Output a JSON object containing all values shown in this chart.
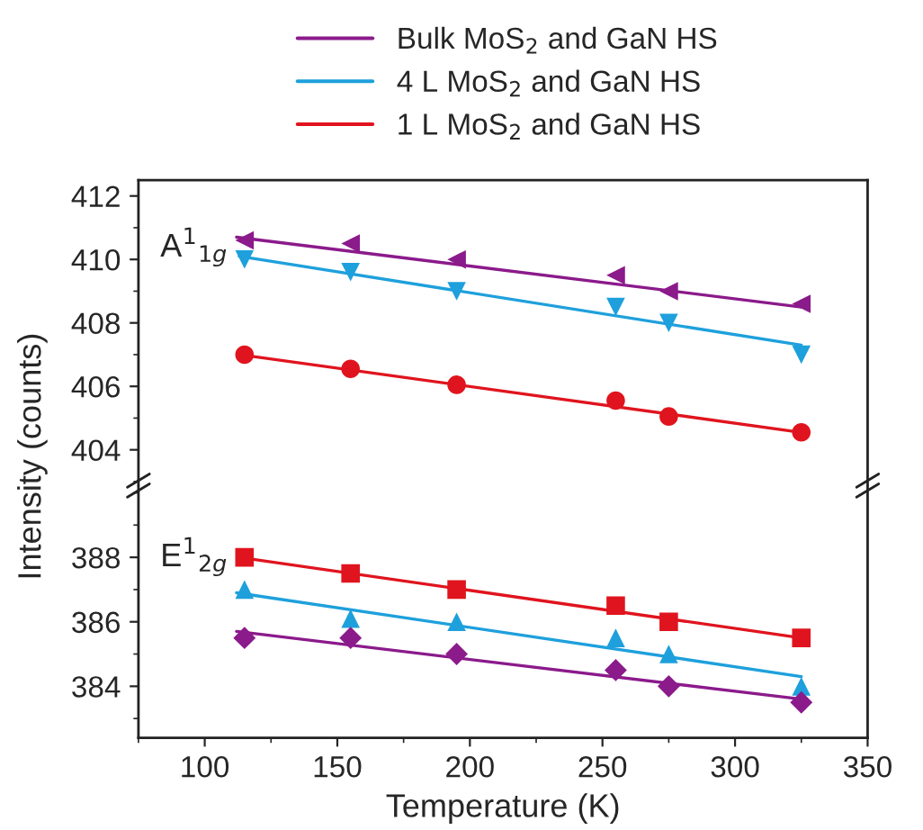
{
  "chart_data": [
    {
      "type": "scatter",
      "ylabel": "Intensity (counts)",
      "annotations": [
        "A$^{1}$$_{1g}$"
      ],
      "legend": "top",
      "tick_labels": "y",
      "xlim": [
        75,
        350
      ],
      "xticks": [
        100,
        150,
        200,
        250,
        300,
        350
      ],
      "ylim": [
        402.9,
        412.5
      ],
      "yticks": [
        404,
        406,
        408,
        410,
        412
      ],
      "series": [
        {
          "color": "#8b1a8b",
          "marker": "triangle-left",
          "x": [
            115,
            155,
            195,
            255,
            275,
            325
          ],
          "values": [
            410.6,
            410.5,
            410.0,
            409.5,
            409.0,
            408.6
          ]
        },
        {
          "color": "#1ea0dc",
          "marker": "triangle-down",
          "x": [
            115,
            155,
            195,
            255,
            275,
            325
          ],
          "values": [
            410.0,
            409.6,
            409.0,
            408.5,
            408.0,
            407.0
          ]
        },
        {
          "color": "#e0141e",
          "marker": "circle",
          "x": [
            115,
            155,
            195,
            255,
            275,
            325
          ],
          "values": [
            407.0,
            406.55,
            406.05,
            405.55,
            405.05,
            404.55
          ]
        },
        {
          "type": "line",
          "name": "Bulk MoS$_{2}$ and GaN HS",
          "color": "#8b1a8b",
          "x": [
            112,
            325
          ],
          "values": [
            410.7,
            408.5
          ]
        },
        {
          "type": "line",
          "name": "4 L MoS$_{2}$ and GaN HS",
          "color": "#1ea0dc",
          "x": [
            113,
            325
          ],
          "values": [
            410.1,
            407.3
          ]
        },
        {
          "type": "line",
          "name": "1 L MoS$_{2}$ and GaN HS",
          "color": "#e0141e",
          "x": [
            113,
            325
          ],
          "values": [
            407.0,
            404.55
          ]
        }
      ]
    },
    {
      "type": "scatter",
      "xlabel": "Temperature (K)",
      "annotations": [
        "E$^{1}$$_{2g}$"
      ],
      "xlim": [
        75,
        350
      ],
      "xticks": [
        100,
        150,
        200,
        250,
        300,
        350
      ],
      "ylim": [
        382.4,
        390.2
      ],
      "yticks": [
        384,
        386,
        388
      ],
      "series": [
        {
          "color": "#e0141e",
          "marker": "square",
          "x": [
            115,
            155,
            195,
            255,
            275,
            325
          ],
          "values": [
            388.0,
            387.5,
            387.0,
            386.5,
            386.0,
            385.5
          ]
        },
        {
          "color": "#1ea0dc",
          "marker": "triangle",
          "x": [
            115,
            155,
            195,
            255,
            275,
            325
          ],
          "values": [
            387.0,
            386.1,
            386.0,
            385.5,
            385.0,
            384.0
          ]
        },
        {
          "color": "#8b1a8b",
          "marker": "diamond",
          "x": [
            115,
            155,
            195,
            255,
            275,
            325
          ],
          "values": [
            385.5,
            385.5,
            385.0,
            384.5,
            384.0,
            383.5
          ]
        },
        {
          "type": "line",
          "color": "#e0141e",
          "x": [
            113,
            325
          ],
          "values": [
            388.0,
            385.5
          ]
        },
        {
          "type": "line",
          "color": "#1ea0dc",
          "x": [
            112,
            325
          ],
          "values": [
            386.9,
            384.3
          ]
        },
        {
          "type": "line",
          "color": "#8b1a8b",
          "x": [
            112,
            325
          ],
          "values": [
            385.7,
            383.6
          ]
        }
      ]
    }
  ]
}
